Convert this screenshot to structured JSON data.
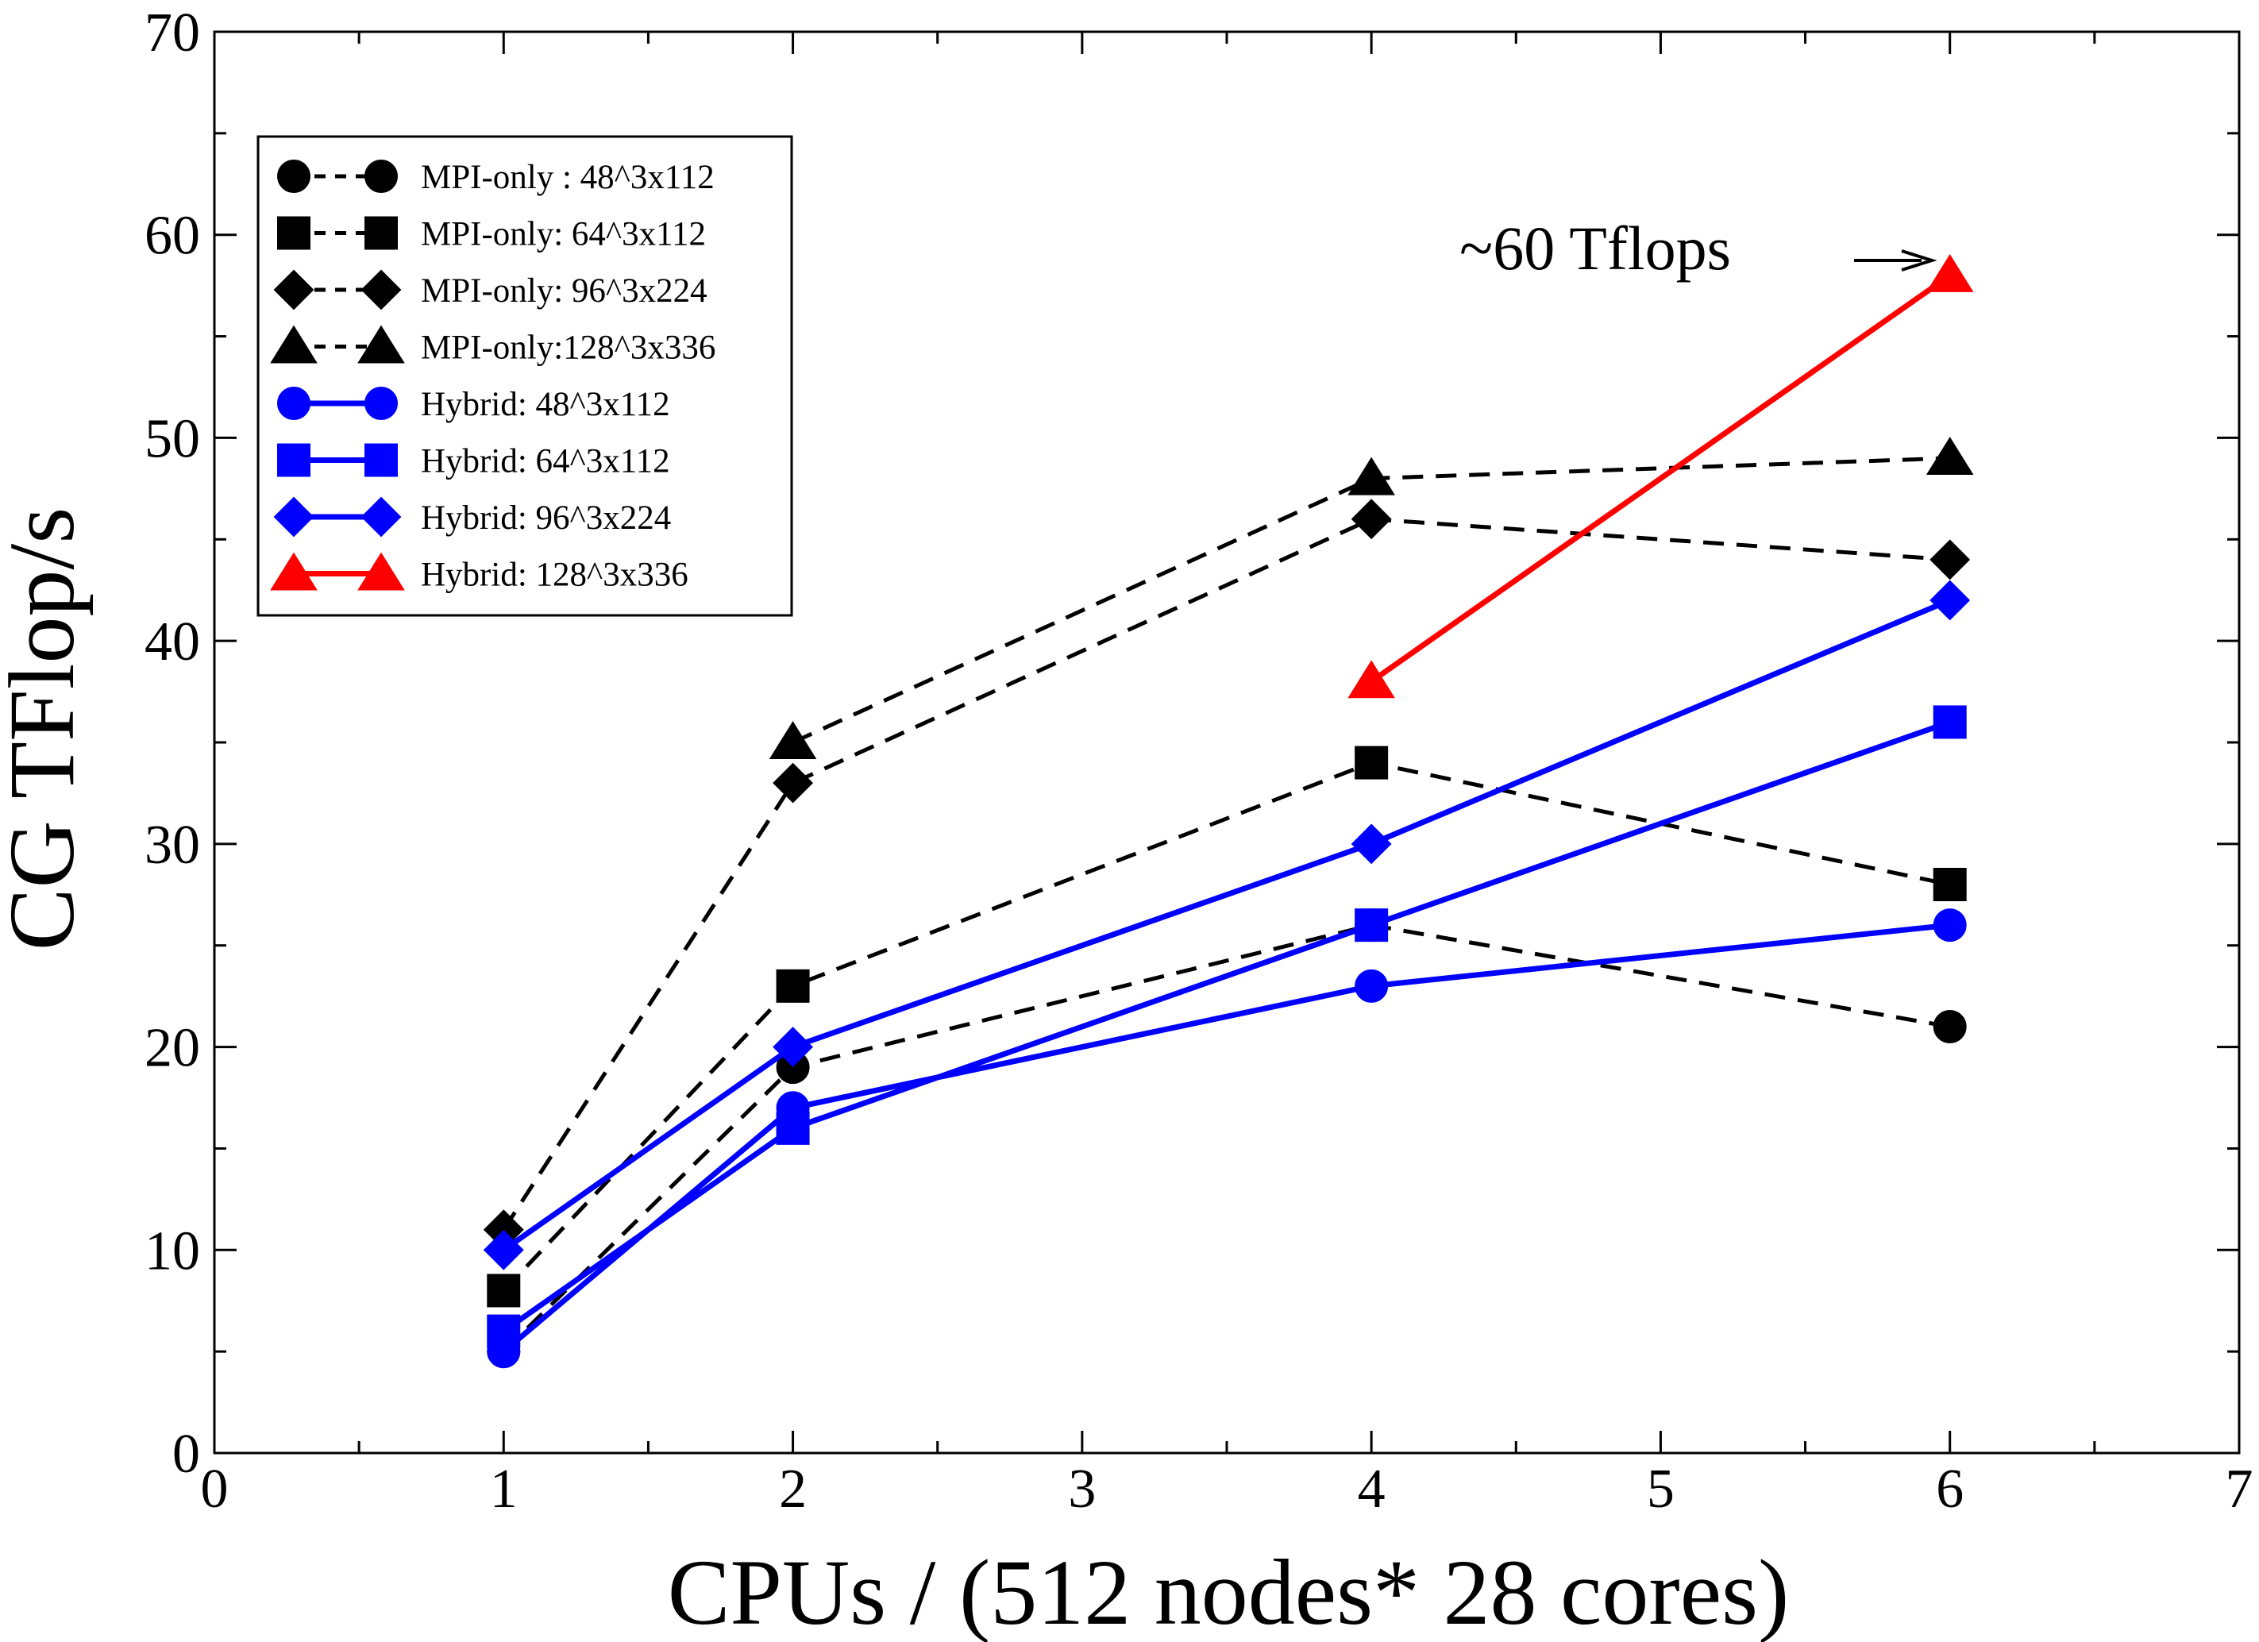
{
  "chart_data": {
    "type": "line",
    "title": "",
    "xlabel": "CPUs / (512 nodes* 28 cores)",
    "ylabel": "CG TFlop/s",
    "xlim": [
      0,
      7
    ],
    "ylim": [
      0,
      70
    ],
    "x_ticks": [
      0,
      1,
      2,
      3,
      4,
      5,
      6,
      7
    ],
    "y_ticks": [
      0,
      10,
      20,
      30,
      40,
      50,
      60,
      70
    ],
    "x_tick_labels": [
      "0",
      "1",
      "2",
      "3",
      "4",
      "5",
      "6",
      "7"
    ],
    "y_tick_labels": [
      "0",
      "10",
      "20",
      "30",
      "40",
      "50",
      "60",
      "70"
    ],
    "grid": false,
    "legend_position": "top-left",
    "series": [
      {
        "name": "MPI-only : 48^3x112",
        "marker": "circle",
        "color": "#000000",
        "dashed": true,
        "x": [
          1,
          2,
          4,
          6
        ],
        "y": [
          5,
          19,
          26,
          21
        ]
      },
      {
        "name": "MPI-only: 64^3x112",
        "marker": "square",
        "color": "#000000",
        "dashed": true,
        "x": [
          1,
          2,
          4,
          6
        ],
        "y": [
          8,
          23,
          34,
          28
        ]
      },
      {
        "name": "MPI-only: 96^3x224",
        "marker": "diamond",
        "color": "#000000",
        "dashed": true,
        "x": [
          1,
          2,
          4,
          6
        ],
        "y": [
          11,
          33,
          46,
          44
        ]
      },
      {
        "name": "MPI-only:128^3x336",
        "marker": "triangle",
        "color": "#000000",
        "dashed": true,
        "x": [
          2,
          4,
          6
        ],
        "y": [
          35,
          48,
          49
        ]
      },
      {
        "name": "Hybrid: 48^3x112",
        "marker": "circle",
        "color": "#0000ff",
        "dashed": false,
        "x": [
          1,
          2,
          4,
          6
        ],
        "y": [
          5,
          17,
          23,
          26
        ]
      },
      {
        "name": "Hybrid: 64^3x112",
        "marker": "square",
        "color": "#0000ff",
        "dashed": false,
        "x": [
          1,
          2,
          4,
          6
        ],
        "y": [
          6,
          16,
          26,
          36
        ]
      },
      {
        "name": "Hybrid: 96^3x224",
        "marker": "diamond",
        "color": "#0000ff",
        "dashed": false,
        "x": [
          1,
          2,
          4,
          6
        ],
        "y": [
          10,
          20,
          30,
          42
        ]
      },
      {
        "name": "Hybrid: 128^3x336",
        "marker": "triangle",
        "color": "#ff0000",
        "dashed": false,
        "x": [
          4,
          6
        ],
        "y": [
          38,
          58
        ]
      }
    ],
    "annotations": [
      {
        "text": "~60 Tflops",
        "arrow_to": [
          6,
          58
        ]
      }
    ]
  }
}
